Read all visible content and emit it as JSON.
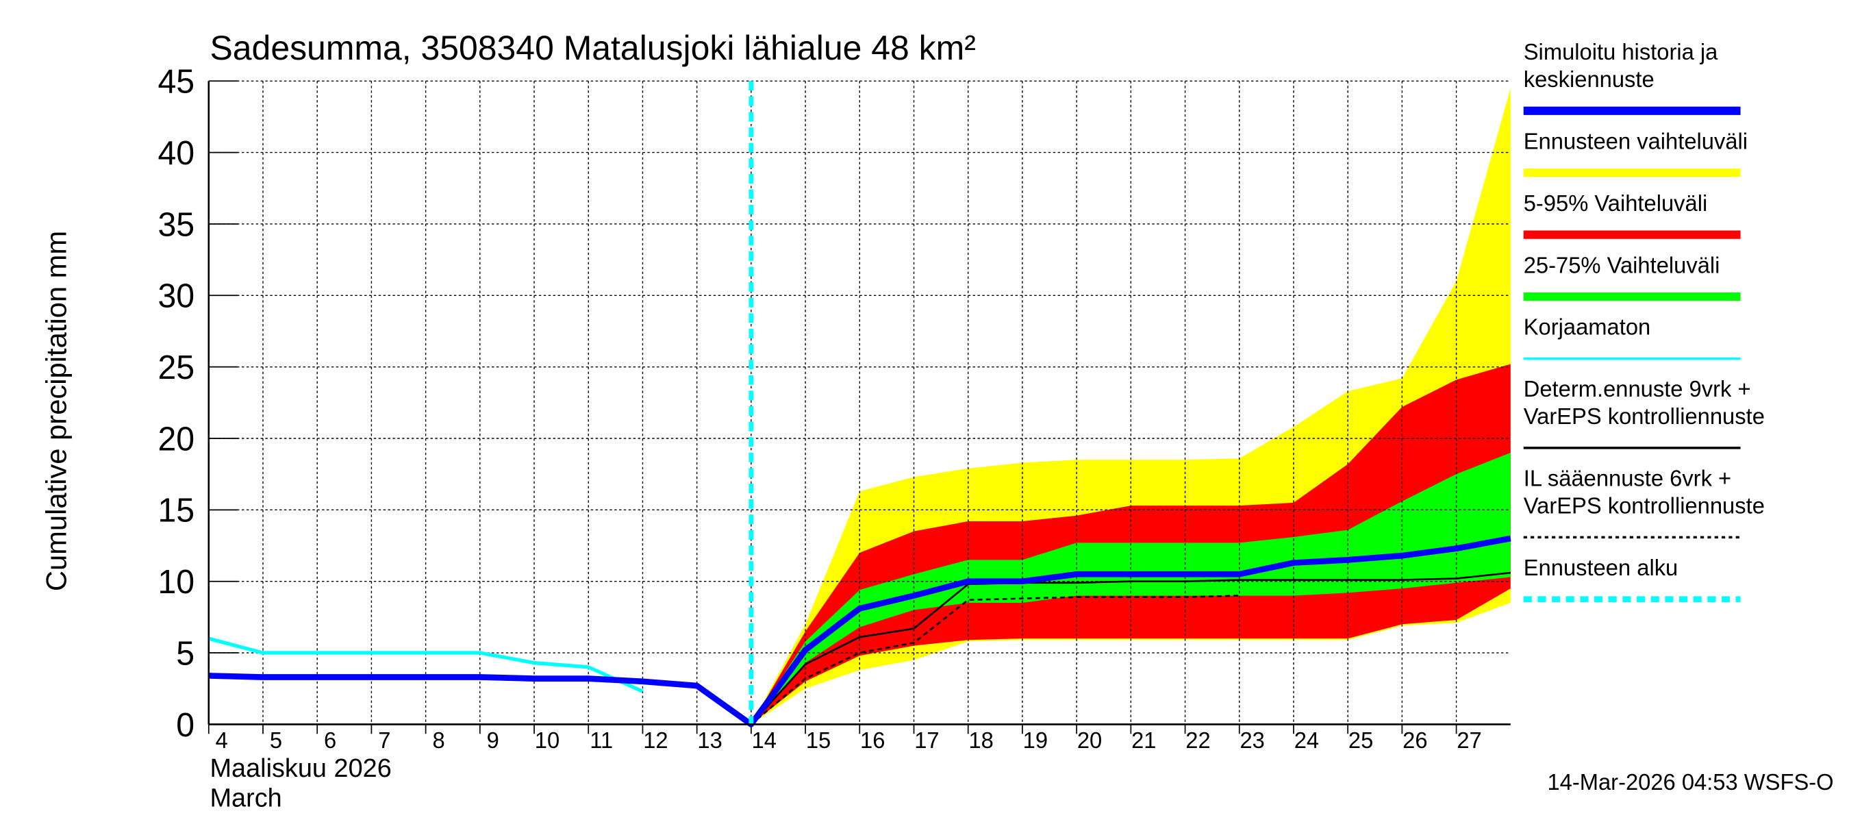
{
  "chart_data": {
    "type": "area",
    "title": "Sadesumma, 3508340 Matalusjoki lähialue 48 km²",
    "ylabel": "Cumulative precipitation    mm",
    "xlabel_lines": [
      "Maaliskuu 2026",
      "March"
    ],
    "footer": "14-Mar-2026 04:53 WSFS-O",
    "xlim": [
      4,
      28
    ],
    "ylim": [
      0,
      45
    ],
    "yticks": [
      0,
      5,
      10,
      15,
      20,
      25,
      30,
      35,
      40,
      45
    ],
    "xticks": [
      4,
      5,
      6,
      7,
      8,
      9,
      10,
      11,
      12,
      13,
      14,
      15,
      16,
      17,
      18,
      19,
      20,
      21,
      22,
      23,
      24,
      25,
      26,
      27
    ],
    "grid": true,
    "legend_position": "right",
    "forecast_start": 14,
    "colors": {
      "yellow": "#ffff00",
      "red": "#ff0000",
      "green": "#00ff00",
      "blue": "#0000ff",
      "cyan": "#00ffff",
      "black": "#000000"
    },
    "bands_x": [
      14,
      15,
      16,
      17,
      18,
      19,
      20,
      21,
      22,
      23,
      24,
      25,
      26,
      27,
      28
    ],
    "bands": [
      {
        "name": "Ennusteen vaihteluväli",
        "color": "#ffff00",
        "upper": [
          0,
          7,
          16.3,
          17.3,
          17.9,
          18.3,
          18.5,
          18.5,
          18.5,
          18.6,
          20.8,
          23.3,
          24.2,
          31,
          44.5
        ],
        "lower": [
          0,
          2.5,
          3.8,
          4.5,
          5.8,
          5.9,
          5.9,
          5.9,
          5.9,
          5.9,
          5.9,
          5.9,
          6.9,
          7.1,
          8.5
        ]
      },
      {
        "name": "5-95% Vaihteluväli",
        "color": "#ff0000",
        "upper": [
          0,
          6.5,
          12.0,
          13.5,
          14.2,
          14.2,
          14.6,
          15.3,
          15.3,
          15.3,
          15.5,
          18.2,
          22.2,
          24.1,
          25.2
        ],
        "lower": [
          0,
          3.0,
          4.8,
          5.5,
          5.9,
          6.0,
          6.0,
          6.0,
          6.0,
          6.0,
          6.0,
          6.0,
          7.0,
          7.3,
          9.5
        ]
      },
      {
        "name": "25-75% Vaihteluväli",
        "color": "#00ff00",
        "upper": [
          0,
          5.8,
          9.4,
          10.5,
          11.5,
          11.5,
          12.7,
          12.7,
          12.7,
          12.7,
          13.1,
          13.6,
          15.6,
          17.5,
          19.0
        ],
        "lower": [
          0,
          4.3,
          6.8,
          8.0,
          8.5,
          8.5,
          9.0,
          9.0,
          9.0,
          9.0,
          9.0,
          9.2,
          9.5,
          9.9,
          10.3
        ]
      }
    ],
    "series": [
      {
        "name": "Simuloitu historia ja keskiennuste",
        "color": "#0000ff",
        "x": [
          4,
          5,
          6,
          7,
          8,
          9,
          10,
          11,
          12,
          13,
          14,
          15,
          16,
          17,
          18,
          19,
          20,
          21,
          22,
          23,
          24,
          25,
          26,
          27,
          28
        ],
        "y": [
          3.4,
          3.3,
          3.3,
          3.3,
          3.3,
          3.3,
          3.2,
          3.2,
          3.0,
          2.7,
          0,
          5.2,
          8.1,
          9.0,
          10.0,
          10.0,
          10.5,
          10.5,
          10.5,
          10.5,
          11.3,
          11.5,
          11.8,
          12.3,
          13.0
        ]
      },
      {
        "name": "Korjaamaton",
        "color": "#00ffff",
        "x": [
          4,
          5,
          6,
          7,
          8,
          9,
          10,
          11,
          12
        ],
        "y": [
          6.0,
          5.0,
          5.0,
          5.0,
          5.0,
          5.0,
          4.3,
          4.0,
          2.3
        ]
      },
      {
        "name": "Determ.ennuste 9vrk + VarEPS kontrolliennuste",
        "color": "#000000",
        "x": [
          14,
          15,
          16,
          17,
          18,
          19,
          20,
          21,
          22,
          23,
          24,
          25,
          26,
          27,
          28
        ],
        "y": [
          0,
          4.2,
          6.1,
          6.7,
          9.8,
          9.9,
          9.9,
          10.0,
          10.0,
          10.1,
          10.1,
          10.1,
          10.1,
          10.2,
          10.6
        ]
      },
      {
        "name": "IL sääennuste 6vrk + VarEPS kontrolliennuste",
        "color": "#000000",
        "dashed": true,
        "x": [
          14,
          15,
          16,
          17,
          18,
          19,
          20,
          21,
          22,
          23
        ],
        "y": [
          0,
          3.2,
          5.0,
          5.7,
          8.7,
          8.8,
          8.9,
          8.9,
          8.9,
          9.0
        ]
      }
    ],
    "legend": [
      {
        "lines": [
          "Simuloitu historia ja",
          "keskiennuste"
        ],
        "color": "#0000ff",
        "style": "thick"
      },
      {
        "lines": [
          "Ennusteen vaihteluväli"
        ],
        "color": "#ffff00",
        "style": "thick"
      },
      {
        "lines": [
          "5-95% Vaihteluväli"
        ],
        "color": "#ff0000",
        "style": "thick"
      },
      {
        "lines": [
          "25-75% Vaihteluväli"
        ],
        "color": "#00ff00",
        "style": "thick"
      },
      {
        "lines": [
          "Korjaamaton"
        ],
        "color": "#00ffff",
        "style": "thin"
      },
      {
        "lines": [
          "Determ.ennuste 9vrk +",
          "VarEPS kontrolliennuste"
        ],
        "color": "#000000",
        "style": "thin"
      },
      {
        "lines": [
          "IL sääennuste 6vrk  +",
          "VarEPS kontrolliennuste"
        ],
        "color": "#000000",
        "style": "dotted"
      },
      {
        "lines": [
          "Ennusteen alku"
        ],
        "color": "#00ffff",
        "style": "dashed-thick"
      }
    ]
  }
}
